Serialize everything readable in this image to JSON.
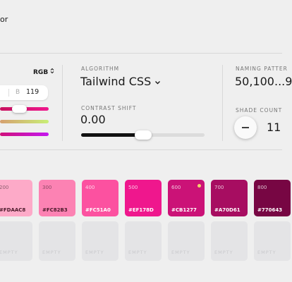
{
  "header": {
    "title": "or"
  },
  "picker": {
    "mode": "RGB",
    "channel": "B",
    "channel_value": "119"
  },
  "algorithm": {
    "label": "ALGORITHM",
    "value": "Tailwind CSS"
  },
  "contrast": {
    "label": "CONTRAST SHIFT",
    "value": "0.00"
  },
  "naming": {
    "label": "NAMING PATTER",
    "value": "50,100...9"
  },
  "shade_count": {
    "label": "SHADE COUNT",
    "value": "11"
  },
  "swatches": [
    {
      "shade": "200",
      "hex": "#FDAAC8"
    },
    {
      "shade": "300",
      "hex": "#FC82B3"
    },
    {
      "shade": "400",
      "hex": "#FC51A0"
    },
    {
      "shade": "500",
      "hex": "#EF178D"
    },
    {
      "shade": "600",
      "hex": "#CB1277"
    },
    {
      "shade": "700",
      "hex": "#A70D61"
    },
    {
      "shade": "800",
      "hex": "#770643"
    }
  ],
  "empty": [
    "EMPTY",
    "EMPTY",
    "EMPTY",
    "EMPTY",
    "EMPTY",
    "EMPTY",
    "EMPTY"
  ]
}
